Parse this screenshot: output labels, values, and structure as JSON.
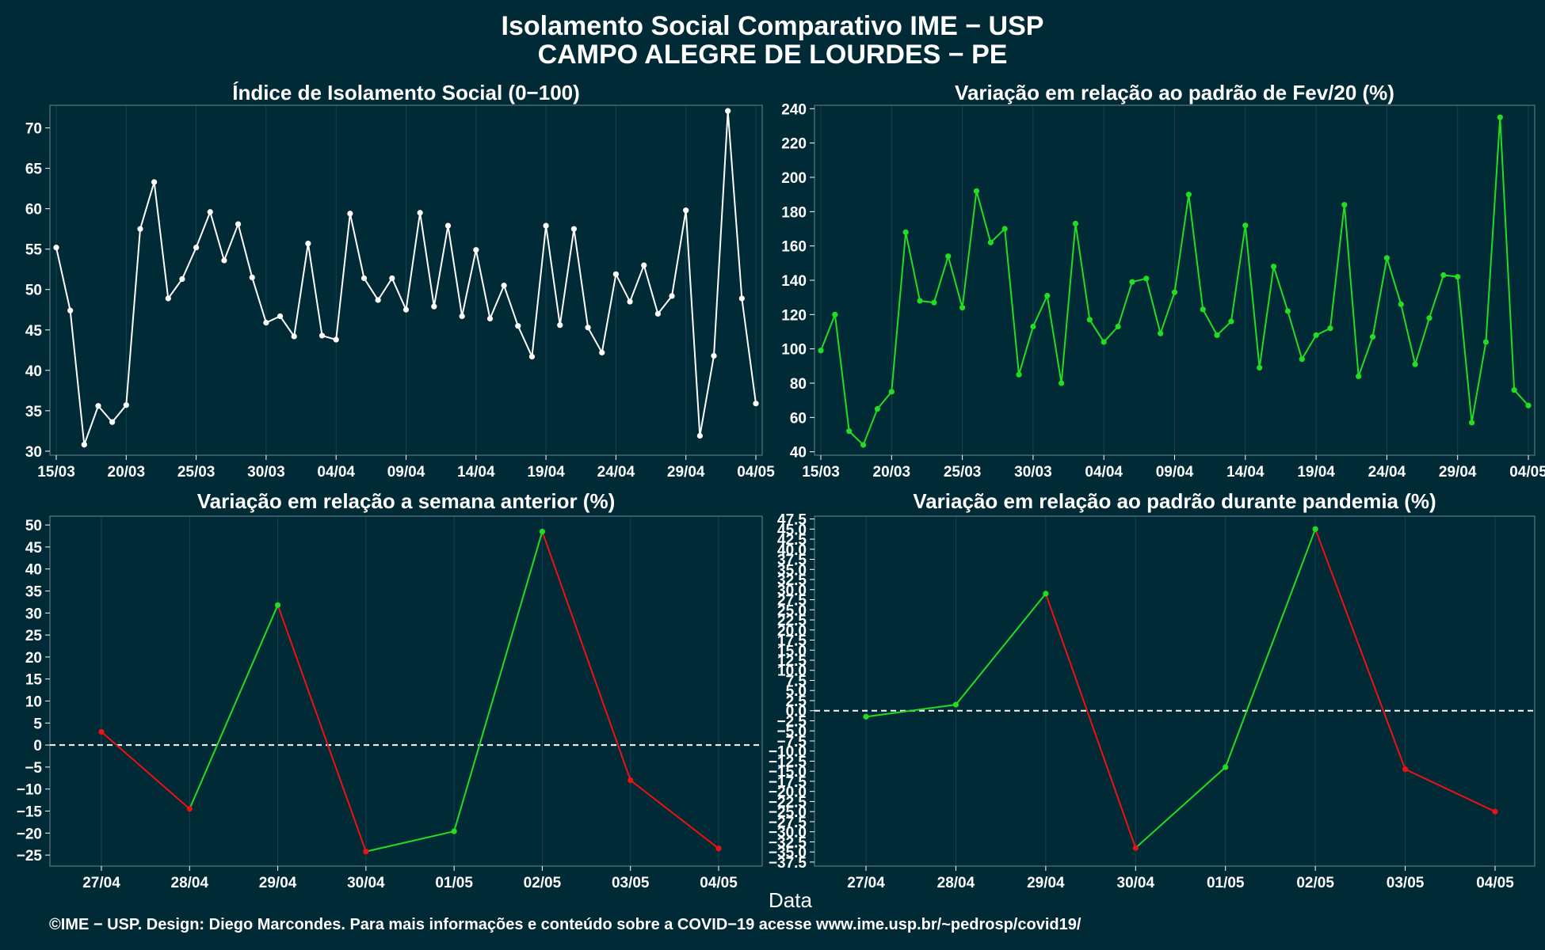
{
  "figure": {
    "title_line1": "Isolamento Social Comparativo IME − USP",
    "title_line2": "CAMPO ALEGRE DE LOURDES − PE",
    "xlabel": "Data",
    "footer": "©IME − USP. Design: Diego Marcondes. Para mais informações e conteúdo sobre a COVID−19 acesse www.ime.usp.br/~pedrosp/covid19/"
  },
  "colors": {
    "background": "#002a36",
    "grid": "#16424e",
    "white_series": "#ffffff",
    "green_series": "#22dd22",
    "increase": "#22dd22",
    "decrease": "#ee1111"
  },
  "chart_data": [
    {
      "type": "line",
      "title": "Índice de Isolamento Social (0−100)",
      "x_tick_labels": [
        "15/03",
        "20/03",
        "25/03",
        "30/03",
        "04/04",
        "09/04",
        "14/04",
        "19/04",
        "24/04",
        "29/04",
        "04/05"
      ],
      "y_ticks": [
        30,
        35,
        40,
        45,
        50,
        55,
        60,
        65,
        70
      ],
      "ylim": [
        29.5,
        72.8
      ],
      "x_start_date": "15/03",
      "x_count": 51,
      "series": [
        {
          "color": "white",
          "values": [
            55.2,
            47.4,
            30.8,
            35.6,
            33.6,
            35.7,
            57.5,
            63.3,
            48.9,
            51.3,
            55.2,
            59.6,
            53.6,
            58.1,
            51.5,
            45.9,
            46.7,
            44.2,
            55.7,
            44.3,
            43.8,
            59.4,
            51.4,
            48.7,
            51.4,
            47.5,
            59.5,
            47.9,
            57.9,
            46.7,
            54.9,
            46.4,
            50.5,
            45.5,
            41.7,
            57.9,
            45.6,
            57.5,
            45.3,
            42.2,
            51.9,
            48.5,
            53.0,
            47.0,
            49.2,
            59.8,
            31.9,
            41.8,
            72.1,
            48.9,
            35.9
          ]
        }
      ]
    },
    {
      "type": "line",
      "title": "Variação em relação ao padrão de Fev/20 (%)",
      "x_tick_labels": [
        "15/03",
        "20/03",
        "25/03",
        "30/03",
        "04/04",
        "09/04",
        "14/04",
        "19/04",
        "24/04",
        "29/04",
        "04/05"
      ],
      "y_ticks": [
        40,
        60,
        80,
        100,
        120,
        140,
        160,
        180,
        200,
        220,
        240
      ],
      "ylim": [
        38,
        242
      ],
      "x_start_date": "15/03",
      "x_count": 51,
      "series": [
        {
          "color": "green",
          "values": [
            99,
            120,
            52,
            44,
            65,
            75,
            168,
            128,
            127,
            154,
            124,
            192,
            162,
            170,
            85,
            113,
            131,
            80,
            173,
            117,
            104,
            113,
            139,
            141,
            109,
            133,
            190,
            123,
            108,
            116,
            172,
            89,
            148,
            122,
            94,
            108,
            112,
            184,
            84,
            107,
            153,
            126,
            91,
            118,
            143,
            142,
            57,
            104,
            235,
            76,
            67
          ]
        }
      ]
    },
    {
      "type": "line",
      "title": "Variação em relação a semana anterior (%)",
      "categories": [
        "27/04",
        "28/04",
        "29/04",
        "30/04",
        "01/05",
        "02/05",
        "03/05",
        "04/05"
      ],
      "y_ticks": [
        -25,
        -20,
        -15,
        -10,
        -5,
        0,
        5,
        10,
        15,
        20,
        25,
        30,
        35,
        40,
        45,
        50
      ],
      "ylim": [
        -27.5,
        52
      ],
      "reference_line": 0,
      "values": [
        3.0,
        -14.5,
        31.8,
        -24.2,
        -19.6,
        48.5,
        -8.0,
        -23.5
      ]
    },
    {
      "type": "line",
      "title": "Variação em relação ao padrão durante pandemia (%)",
      "categories": [
        "27/04",
        "28/04",
        "29/04",
        "30/04",
        "01/05",
        "02/05",
        "03/05",
        "04/05"
      ],
      "y_ticks": [
        -37.5,
        -35.0,
        -32.5,
        -30.0,
        -27.5,
        -25.0,
        -22.5,
        -20.0,
        -17.5,
        -15.0,
        -12.5,
        -10.0,
        -7.5,
        -5.0,
        -2.5,
        0.0,
        2.5,
        5.0,
        7.5,
        10.0,
        12.5,
        15.0,
        17.5,
        20.0,
        22.5,
        25.0,
        27.5,
        30.0,
        32.5,
        35.0,
        37.5,
        40.0,
        42.5,
        45.0,
        47.5
      ],
      "ylim": [
        -38.5,
        48.2
      ],
      "reference_line": 0,
      "values": [
        -1.5,
        1.5,
        29.0,
        -34.0,
        -14.0,
        45.0,
        -14.5,
        -25.0
      ]
    }
  ]
}
